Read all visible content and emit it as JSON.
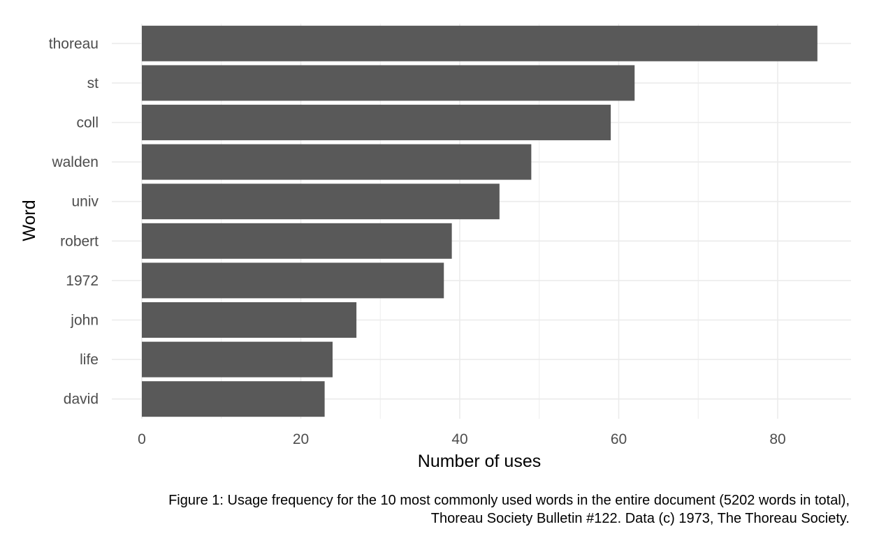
{
  "chart_data": {
    "type": "bar",
    "orientation": "horizontal",
    "categories": [
      "thoreau",
      "st",
      "coll",
      "walden",
      "univ",
      "robert",
      "1972",
      "john",
      "life",
      "david"
    ],
    "values": [
      85,
      62,
      59,
      49,
      45,
      39,
      38,
      27,
      24,
      23
    ],
    "xlabel": "Number of uses",
    "ylabel": "Word",
    "xticks": [
      0,
      20,
      40,
      60,
      80
    ],
    "xlim": [
      0,
      89
    ],
    "grid": true,
    "bar_color": "#595959",
    "grid_color": "#ebebeb"
  },
  "caption": {
    "line1": "Figure 1: Usage frequency for the 10 most commonly used words in the entire document (5202 words in total),",
    "line2": "Thoreau Society Bulletin #122. Data (c) 1973, The Thoreau Society."
  }
}
